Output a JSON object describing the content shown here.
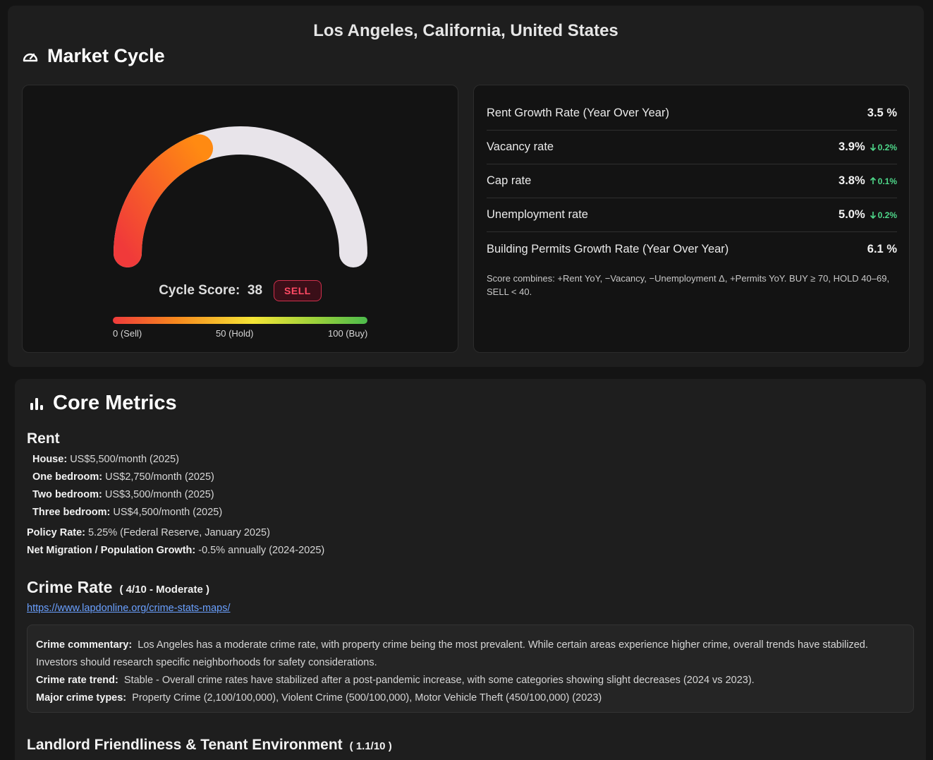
{
  "location": "Los Angeles, California, United States",
  "market_cycle": {
    "title": "Market Cycle",
    "icon": "speedometer-icon",
    "gauge": {
      "value": 38,
      "min": 0,
      "max": 100
    },
    "score_label": "Cycle Score:",
    "score_value": "38",
    "badge": "SELL",
    "scale_labels": {
      "min": "0 (Sell)",
      "mid": "50 (Hold)",
      "max": "100 (Buy)"
    },
    "stats": [
      {
        "name": "Rent Growth Rate (Year Over Year)",
        "value": "3.5 %",
        "delta": "",
        "direction": ""
      },
      {
        "name": "Vacancy rate",
        "value": "3.9%",
        "delta": "0.2%",
        "direction": "down"
      },
      {
        "name": "Cap rate",
        "value": "3.8%",
        "delta": "0.1%",
        "direction": "up"
      },
      {
        "name": "Unemployment rate",
        "value": "5.0%",
        "delta": "0.2%",
        "direction": "down"
      },
      {
        "name": "Building Permits Growth Rate (Year Over Year)",
        "value": "6.1 %",
        "delta": "",
        "direction": ""
      }
    ],
    "note": "Score combines: +Rent YoY, −Vacancy, −Unemployment Δ, +Permits YoY. BUY ≥ 70, HOLD 40–69, SELL < 40.",
    "colors": {
      "gauge_start": "#f03a3a",
      "gauge_end": "#ff8a12",
      "gauge_track": "#e8e4ea",
      "badge": "#ff4a64",
      "delta": "#4ed88a"
    }
  },
  "core_metrics": {
    "title": "Core Metrics",
    "icon": "bar-chart-icon",
    "rent": {
      "heading": "Rent",
      "items": [
        {
          "label": "House:",
          "value": "US$5,500/month (2025)"
        },
        {
          "label": "One bedroom:",
          "value": "US$2,750/month (2025)"
        },
        {
          "label": "Two bedroom:",
          "value": "US$3,500/month (2025)"
        },
        {
          "label": "Three bedroom:",
          "value": "US$4,500/month (2025)"
        }
      ]
    },
    "policy_rate": {
      "label": "Policy Rate:",
      "value": "5.25% (Federal Reserve, January 2025)"
    },
    "migration": {
      "label": "Net Migration / Population Growth:",
      "value": "-0.5% annually (2024-2025)"
    },
    "crime": {
      "heading": "Crime Rate",
      "score": "( 4/10 - Moderate )",
      "link": "https://www.lapdonline.org/crime-stats-maps/",
      "commentary_label": "Crime commentary:",
      "commentary": "Los Angeles has a moderate crime rate, with property crime being the most prevalent. While certain areas experience higher crime, overall trends have stabilized. Investors should research specific neighborhoods for safety considerations.",
      "trend_label": "Crime rate trend:",
      "trend": "Stable - Overall crime rates have stabilized after a post-pandemic increase, with some categories showing slight decreases (2024 vs 2023).",
      "types_label": "Major crime types:",
      "types": "Property Crime (2,100/100,000), Violent Crime (500/100,000), Motor Vehicle Theft (450/100,000) (2023)"
    },
    "landlord": {
      "heading": "Landlord Friendliness & Tenant Environment",
      "score": "( 1.1/10 )"
    }
  }
}
